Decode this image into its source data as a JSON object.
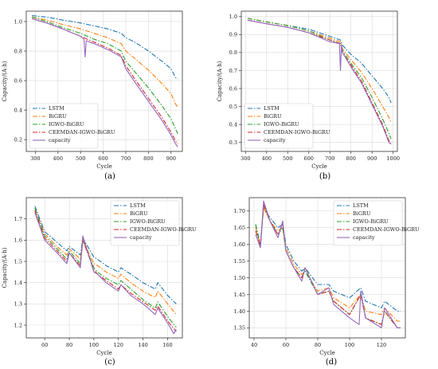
{
  "series_styles": [
    {
      "name": "LSTM",
      "color": "#1f77b4",
      "dash": "6,2,1.5,2"
    },
    {
      "name": "BiGRU",
      "color": "#ff7f0e",
      "dash": "6,2,1.5,2"
    },
    {
      "name": "IGWO-BiGRU",
      "color": "#2ca02c",
      "dash": "6,2,1.5,2"
    },
    {
      "name": "CEEMDAN-IGWO-BiGRU",
      "color": "#d62728",
      "dash": "6,2,1.5,2"
    },
    {
      "name": "capacity",
      "color": "#9467bd",
      "dash": ""
    }
  ],
  "chart_data": [
    {
      "type": "line",
      "caption": "(a)",
      "xlabel": "Cycle",
      "ylabel": "Capacity/(A·h)",
      "xlim": [
        260,
        950
      ],
      "ylim": [
        0.12,
        1.07
      ],
      "xticks": [
        300,
        400,
        500,
        600,
        700,
        800,
        900
      ],
      "yticks": [
        0.2,
        0.4,
        0.6,
        0.8,
        1.0
      ],
      "ytick_labels": [
        "0.2",
        "0.4",
        "0.6",
        "0.8",
        "1.0"
      ],
      "grid": true,
      "legend": "lower-left",
      "series": [
        {
          "name": "LSTM",
          "x": [
            285,
            350,
            420,
            500,
            560,
            620,
            680,
            700,
            740,
            800,
            860,
            900,
            920,
            930
          ],
          "values": [
            1.04,
            1.03,
            1.01,
            0.99,
            0.97,
            0.95,
            0.92,
            0.89,
            0.86,
            0.8,
            0.73,
            0.68,
            0.62,
            0.61
          ]
        },
        {
          "name": "BiGRU",
          "x": [
            285,
            350,
            420,
            500,
            560,
            620,
            680,
            700,
            740,
            800,
            860,
            900,
            920,
            930
          ],
          "values": [
            1.03,
            1.01,
            0.98,
            0.95,
            0.92,
            0.89,
            0.85,
            0.8,
            0.75,
            0.67,
            0.58,
            0.51,
            0.44,
            0.42
          ]
        },
        {
          "name": "IGWO-BiGRU",
          "x": [
            285,
            350,
            420,
            500,
            560,
            620,
            680,
            700,
            740,
            800,
            860,
            900,
            920,
            930
          ],
          "values": [
            1.03,
            1.0,
            0.96,
            0.92,
            0.88,
            0.85,
            0.8,
            0.73,
            0.66,
            0.55,
            0.43,
            0.34,
            0.27,
            0.24
          ]
        },
        {
          "name": "CEEMDAN-IGWO-BiGRU",
          "x": [
            285,
            350,
            420,
            500,
            560,
            620,
            680,
            700,
            740,
            800,
            860,
            900,
            920,
            930
          ],
          "values": [
            1.02,
            0.99,
            0.95,
            0.9,
            0.86,
            0.82,
            0.77,
            0.7,
            0.61,
            0.48,
            0.35,
            0.25,
            0.19,
            0.17
          ]
        },
        {
          "name": "capacity",
          "x": [
            285,
            350,
            420,
            500,
            515,
            520,
            525,
            560,
            620,
            680,
            700,
            740,
            800,
            860,
            900,
            920,
            930
          ],
          "values": [
            1.02,
            0.99,
            0.95,
            0.9,
            0.88,
            0.76,
            0.87,
            0.85,
            0.81,
            0.76,
            0.68,
            0.59,
            0.46,
            0.33,
            0.23,
            0.17,
            0.15
          ]
        }
      ]
    },
    {
      "type": "line",
      "caption": "(b)",
      "xlabel": "Cycle",
      "ylabel": "Capacity/(A·h)",
      "xlim": [
        280,
        1020
      ],
      "ylim": [
        0.25,
        1.03
      ],
      "xticks": [
        300,
        400,
        500,
        600,
        700,
        800,
        900,
        1000
      ],
      "yticks": [
        0.3,
        0.4,
        0.5,
        0.6,
        0.7,
        0.8,
        0.9,
        1.0
      ],
      "ytick_labels": [
        "0.3",
        "0.4",
        "0.5",
        "0.6",
        "0.7",
        "0.8",
        "0.9",
        "1.0"
      ],
      "grid": true,
      "legend": "lower-left",
      "series": [
        {
          "name": "LSTM",
          "x": [
            310,
            400,
            500,
            600,
            700,
            750,
            760,
            800,
            850,
            900,
            950,
            980,
            990
          ],
          "values": [
            0.99,
            0.97,
            0.95,
            0.93,
            0.89,
            0.87,
            0.84,
            0.79,
            0.74,
            0.67,
            0.6,
            0.55,
            0.52
          ]
        },
        {
          "name": "BiGRU",
          "x": [
            310,
            400,
            500,
            600,
            700,
            750,
            760,
            800,
            850,
            900,
            950,
            980,
            990
          ],
          "values": [
            0.99,
            0.97,
            0.95,
            0.92,
            0.88,
            0.86,
            0.82,
            0.76,
            0.69,
            0.6,
            0.5,
            0.44,
            0.41
          ]
        },
        {
          "name": "IGWO-BiGRU",
          "x": [
            310,
            400,
            500,
            600,
            700,
            750,
            760,
            800,
            850,
            900,
            950,
            980,
            990
          ],
          "values": [
            0.99,
            0.97,
            0.95,
            0.92,
            0.87,
            0.85,
            0.81,
            0.74,
            0.66,
            0.55,
            0.43,
            0.35,
            0.32
          ]
        },
        {
          "name": "CEEMDAN-IGWO-BiGRU",
          "x": [
            310,
            400,
            500,
            600,
            700,
            750,
            760,
            800,
            850,
            900,
            950,
            980,
            990
          ],
          "values": [
            0.98,
            0.96,
            0.94,
            0.91,
            0.87,
            0.85,
            0.8,
            0.73,
            0.64,
            0.52,
            0.4,
            0.31,
            0.29
          ]
        },
        {
          "name": "capacity",
          "x": [
            310,
            400,
            500,
            600,
            700,
            745,
            750,
            755,
            760,
            800,
            850,
            900,
            950,
            980,
            990
          ],
          "values": [
            0.98,
            0.96,
            0.94,
            0.91,
            0.86,
            0.85,
            0.7,
            0.84,
            0.8,
            0.72,
            0.63,
            0.51,
            0.39,
            0.3,
            0.29
          ]
        }
      ]
    },
    {
      "type": "line",
      "caption": "(c)",
      "xlabel": "Cycle",
      "ylabel": "Capacity/(A·h)",
      "xlim": [
        45,
        172
      ],
      "ylim": [
        1.14,
        1.8
      ],
      "xticks": [
        60,
        80,
        100,
        120,
        140,
        160
      ],
      "yticks": [
        1.2,
        1.3,
        1.4,
        1.5,
        1.6,
        1.7
      ],
      "ytick_labels": [
        "1.2",
        "1.3",
        "1.4",
        "1.5",
        "1.6",
        "1.7"
      ],
      "grid": true,
      "legend": "upper-right",
      "series": [
        {
          "name": "LSTM",
          "x": [
            52,
            60,
            70,
            78,
            80,
            89,
            91,
            100,
            103,
            110,
            120,
            122,
            130,
            140,
            150,
            152,
            160,
            167
          ],
          "values": [
            1.76,
            1.64,
            1.59,
            1.55,
            1.57,
            1.53,
            1.61,
            1.52,
            1.51,
            1.48,
            1.45,
            1.47,
            1.44,
            1.4,
            1.37,
            1.4,
            1.34,
            1.3
          ]
        },
        {
          "name": "BiGRU",
          "x": [
            52,
            60,
            70,
            78,
            80,
            89,
            91,
            100,
            103,
            110,
            120,
            122,
            130,
            140,
            150,
            152,
            160,
            167
          ],
          "values": [
            1.75,
            1.63,
            1.57,
            1.53,
            1.56,
            1.51,
            1.6,
            1.49,
            1.48,
            1.45,
            1.42,
            1.44,
            1.4,
            1.36,
            1.33,
            1.36,
            1.3,
            1.25
          ]
        },
        {
          "name": "IGWO-BiGRU",
          "x": [
            52,
            60,
            70,
            78,
            80,
            89,
            91,
            100,
            103,
            110,
            120,
            122,
            130,
            140,
            150,
            152,
            160,
            167
          ],
          "values": [
            1.75,
            1.62,
            1.56,
            1.51,
            1.55,
            1.49,
            1.6,
            1.47,
            1.45,
            1.42,
            1.39,
            1.41,
            1.37,
            1.32,
            1.28,
            1.31,
            1.24,
            1.19
          ]
        },
        {
          "name": "CEEMDAN-IGWO-BiGRU",
          "x": [
            52,
            60,
            70,
            78,
            80,
            89,
            91,
            100,
            103,
            110,
            120,
            122,
            130,
            140,
            150,
            152,
            160,
            167
          ],
          "values": [
            1.74,
            1.61,
            1.55,
            1.5,
            1.54,
            1.48,
            1.6,
            1.46,
            1.44,
            1.41,
            1.37,
            1.39,
            1.35,
            1.31,
            1.27,
            1.29,
            1.22,
            1.17
          ]
        },
        {
          "name": "capacity",
          "x": [
            52,
            60,
            70,
            78,
            80,
            89,
            91,
            100,
            103,
            110,
            120,
            122,
            130,
            140,
            150,
            152,
            160,
            165,
            167
          ],
          "values": [
            1.73,
            1.6,
            1.54,
            1.49,
            1.54,
            1.47,
            1.62,
            1.45,
            1.44,
            1.4,
            1.36,
            1.39,
            1.34,
            1.3,
            1.25,
            1.28,
            1.21,
            1.16,
            1.18
          ]
        }
      ]
    },
    {
      "type": "line",
      "caption": "(d)",
      "xlabel": "Cycle",
      "ylabel": "",
      "xlim": [
        37,
        135
      ],
      "ylim": [
        1.32,
        1.74
      ],
      "xticks": [
        40,
        60,
        80,
        100,
        120
      ],
      "yticks": [
        1.35,
        1.4,
        1.45,
        1.5,
        1.55,
        1.6,
        1.65,
        1.7
      ],
      "ytick_labels": [
        "1.35",
        "1.40",
        "1.45",
        "1.50",
        "1.55",
        "1.60",
        "1.65",
        "1.70"
      ],
      "grid": true,
      "legend": "upper-right",
      "series": [
        {
          "name": "LSTM",
          "x": [
            41,
            44,
            46,
            50,
            55,
            58,
            60,
            65,
            70,
            72,
            80,
            87,
            90,
            100,
            107,
            110,
            120,
            122,
            130,
            132
          ],
          "values": [
            1.66,
            1.6,
            1.71,
            1.68,
            1.65,
            1.66,
            1.6,
            1.55,
            1.52,
            1.53,
            1.48,
            1.48,
            1.46,
            1.44,
            1.47,
            1.43,
            1.41,
            1.43,
            1.4,
            1.4
          ]
        },
        {
          "name": "BiGRU",
          "x": [
            41,
            44,
            46,
            50,
            55,
            58,
            60,
            65,
            70,
            72,
            80,
            87,
            90,
            100,
            107,
            110,
            120,
            122,
            130,
            132
          ],
          "values": [
            1.65,
            1.6,
            1.71,
            1.67,
            1.64,
            1.65,
            1.59,
            1.54,
            1.51,
            1.52,
            1.46,
            1.47,
            1.44,
            1.41,
            1.45,
            1.4,
            1.39,
            1.41,
            1.37,
            1.37
          ]
        },
        {
          "name": "IGWO-BiGRU",
          "x": [
            41,
            44,
            46,
            50,
            55,
            58,
            60,
            65,
            70,
            72,
            80,
            87,
            90,
            100,
            107,
            110,
            120,
            122,
            130,
            132
          ],
          "values": [
            1.66,
            1.59,
            1.72,
            1.67,
            1.63,
            1.65,
            1.58,
            1.53,
            1.5,
            1.52,
            1.45,
            1.46,
            1.43,
            1.39,
            1.45,
            1.38,
            1.36,
            1.4,
            1.35,
            1.35
          ]
        },
        {
          "name": "CEEMDAN-IGWO-BiGRU",
          "x": [
            41,
            44,
            46,
            50,
            55,
            58,
            60,
            65,
            70,
            72,
            80,
            87,
            90,
            100,
            107,
            110,
            120,
            122,
            130,
            132
          ],
          "values": [
            1.64,
            1.6,
            1.72,
            1.67,
            1.63,
            1.66,
            1.58,
            1.53,
            1.5,
            1.53,
            1.45,
            1.46,
            1.43,
            1.39,
            1.45,
            1.38,
            1.36,
            1.4,
            1.35,
            1.35
          ]
        },
        {
          "name": "capacity",
          "x": [
            41,
            44,
            46,
            50,
            55,
            58,
            60,
            65,
            70,
            72,
            80,
            87,
            90,
            100,
            106,
            107,
            110,
            120,
            122,
            130,
            132
          ],
          "values": [
            1.63,
            1.59,
            1.73,
            1.67,
            1.62,
            1.67,
            1.58,
            1.53,
            1.49,
            1.53,
            1.45,
            1.47,
            1.42,
            1.38,
            1.36,
            1.46,
            1.38,
            1.35,
            1.41,
            1.35,
            1.35
          ]
        }
      ]
    }
  ]
}
